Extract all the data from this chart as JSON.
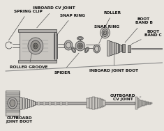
{
  "bg_color": "#e8e5df",
  "line_color": "#3a3a3a",
  "gray1": "#c8c5c0",
  "gray2": "#b0adaa",
  "gray3": "#989590",
  "gray4": "#787570",
  "white": "#f0eeea",
  "labels": {
    "spring_clip": "SPRING CLIP",
    "inboard_cv": "INBOARD CV JOINT",
    "snap_ring1": "SNAP RING",
    "roller": "ROLLER",
    "snap_ring2": "SNAP RING",
    "boot_band_b": "BOOT\nBAND B",
    "boot_band_c": "BOOT\nBAND C",
    "roller_groove": "ROLLER GROOVE",
    "spider": "SPIDER",
    "inboard_boot": "INBOARD JOINT BOOT",
    "outboard_cv": "OUTBOARD\nCV JOINT",
    "outboard_boot": "OUTBOARD\nJOINT BOOT"
  },
  "fs": 4.2,
  "figsize": [
    2.35,
    1.88
  ],
  "dpi": 100
}
